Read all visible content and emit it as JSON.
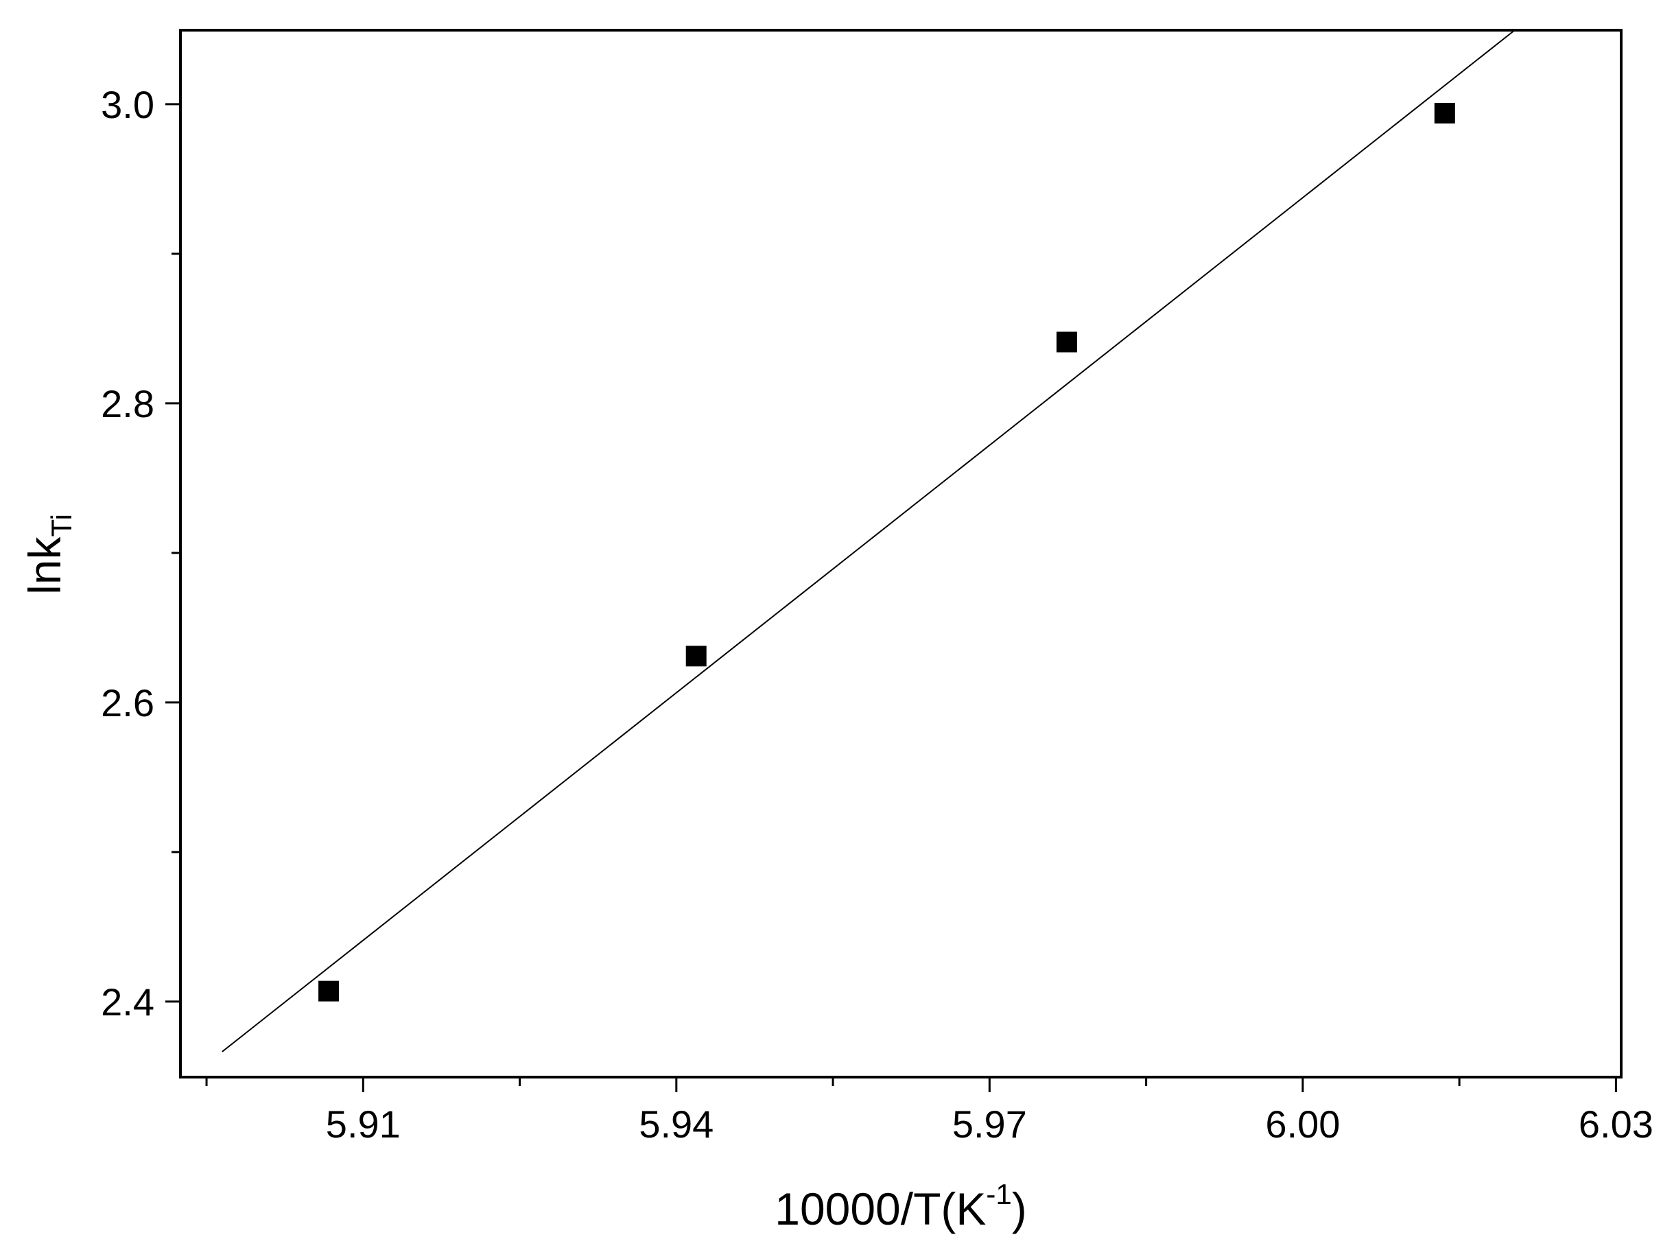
{
  "chart_data": {
    "type": "scatter",
    "title": "",
    "xlabel": {
      "main": "10000/T(K",
      "sup": "-1",
      "close": ")"
    },
    "ylabel": {
      "main": "lnk",
      "sub": "Ti"
    },
    "xlim": [
      5.8925,
      6.0305
    ],
    "ylim": [
      2.3495,
      3.0495
    ],
    "xticks": [
      5.91,
      5.94,
      5.97,
      6.0,
      6.03
    ],
    "xtick_labels": [
      "5.91",
      "5.94",
      "5.97",
      "6.00",
      "6.03"
    ],
    "x_minor_ticks": [
      5.895,
      5.925,
      5.955,
      5.985,
      6.015
    ],
    "yticks": [
      2.4,
      2.6,
      2.8,
      3.0
    ],
    "ytick_labels": [
      "2.4",
      "2.6",
      "2.8",
      "3.0"
    ],
    "y_minor_ticks": [
      2.5,
      2.7,
      2.9
    ],
    "grid": false,
    "series": [
      {
        "marker": "square",
        "color": "#000000",
        "points": [
          {
            "x": 5.9067,
            "y": 2.407
          },
          {
            "x": 5.9419,
            "y": 2.631
          },
          {
            "x": 5.9774,
            "y": 2.841
          },
          {
            "x": 6.0136,
            "y": 2.994
          }
        ]
      }
    ],
    "fit_line": {
      "color": "#000000",
      "points": [
        {
          "x": 5.8965,
          "y": 2.3665
        },
        {
          "x": 6.0203,
          "y": 3.0495
        }
      ]
    }
  }
}
